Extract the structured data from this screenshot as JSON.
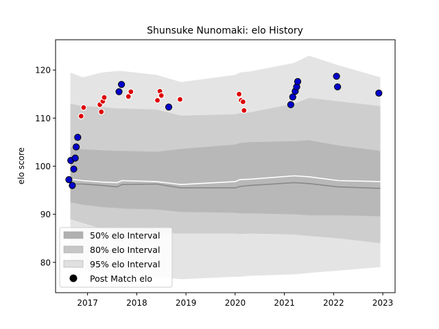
{
  "chart_data": {
    "type": "line",
    "title": "Shunsuke Nunomaki: elo History",
    "xlabel": "",
    "ylabel": "elo score",
    "xlim": [
      2016.35,
      2023.25
    ],
    "ylim": [
      73.7,
      126.3
    ],
    "x_ticks": [
      2017,
      2018,
      2019,
      2020,
      2021,
      2022,
      2023
    ],
    "y_ticks": [
      80,
      90,
      100,
      110,
      120
    ],
    "grid": false,
    "legend_position": "lower-left",
    "colors": {
      "band95": "#e4e4e4",
      "band80": "#cecece",
      "band50": "#b8b8b8",
      "mean_line": "#ffffff",
      "median_line": "#888888",
      "point_win": "#0000cc",
      "point_loss": "#dd0000",
      "point_edge_win": "#000000",
      "point_edge_loss": "#ffffff"
    },
    "bands": {
      "x": [
        2016.65,
        2016.9,
        2017.3,
        2017.6,
        2017.7,
        2018.4,
        2018.9,
        2020.0,
        2020.1,
        2020.3,
        2021.2,
        2021.5,
        2022.1,
        2022.95
      ],
      "p95_low": [
        79,
        78.5,
        77.5,
        77.0,
        76.8,
        77.0,
        76.5,
        77.0,
        77.0,
        77.2,
        77.5,
        77.8,
        78.3,
        79.0
      ],
      "p95_high": [
        119.5,
        118.5,
        119.5,
        119.8,
        119.8,
        119.0,
        117.5,
        119.0,
        119.5,
        119.7,
        121.5,
        123.0,
        121.0,
        118.5
      ],
      "p80_low": [
        89,
        88.2,
        87.0,
        86.6,
        86.5,
        86.2,
        86.0,
        86.0,
        85.9,
        86.0,
        85.8,
        85.5,
        85.0,
        84.0
      ],
      "p80_high": [
        113,
        112.5,
        112.3,
        112.0,
        112.0,
        111.8,
        110.5,
        110.8,
        111.0,
        111.2,
        113.0,
        114.2,
        113.5,
        112.5
      ],
      "p50_low": [
        92.5,
        92.0,
        91.5,
        91.3,
        91.2,
        91.0,
        90.5,
        90.3,
        90.2,
        90.2,
        90.0,
        89.8,
        89.8,
        89.6
      ],
      "p50_high": [
        104.0,
        103.5,
        103.3,
        103.2,
        103.2,
        103.0,
        103.6,
        104.5,
        104.8,
        105.0,
        105.2,
        105.4,
        104.3,
        103.2
      ],
      "mean": [
        97.3,
        97.0,
        96.7,
        96.6,
        97.0,
        96.8,
        96.2,
        96.8,
        97.2,
        97.3,
        98.0,
        97.8,
        97.0,
        96.8
      ],
      "median": [
        96.3,
        96.3,
        96.0,
        95.7,
        96.2,
        96.3,
        95.5,
        95.5,
        95.8,
        96.0,
        96.6,
        96.4,
        95.7,
        95.4
      ]
    },
    "series": [
      {
        "name": "Post Match elo",
        "points": [
          {
            "x": 2016.62,
            "y": 97.2,
            "result": "win"
          },
          {
            "x": 2016.66,
            "y": 101.2,
            "result": "win"
          },
          {
            "x": 2016.69,
            "y": 96.0,
            "result": "win"
          },
          {
            "x": 2016.72,
            "y": 99.4,
            "result": "win"
          },
          {
            "x": 2016.75,
            "y": 101.7,
            "result": "win"
          },
          {
            "x": 2016.77,
            "y": 104.0,
            "result": "win"
          },
          {
            "x": 2016.8,
            "y": 106.0,
            "result": "win"
          },
          {
            "x": 2016.87,
            "y": 110.4,
            "result": "loss"
          },
          {
            "x": 2016.92,
            "y": 112.2,
            "result": "loss"
          },
          {
            "x": 2017.25,
            "y": 112.8,
            "result": "loss"
          },
          {
            "x": 2017.28,
            "y": 111.3,
            "result": "loss"
          },
          {
            "x": 2017.31,
            "y": 113.5,
            "result": "loss"
          },
          {
            "x": 2017.34,
            "y": 114.3,
            "result": "loss"
          },
          {
            "x": 2017.64,
            "y": 115.5,
            "result": "win"
          },
          {
            "x": 2017.69,
            "y": 117.0,
            "result": "win"
          },
          {
            "x": 2017.83,
            "y": 114.5,
            "result": "loss"
          },
          {
            "x": 2017.88,
            "y": 115.5,
            "result": "loss"
          },
          {
            "x": 2018.42,
            "y": 113.7,
            "result": "loss"
          },
          {
            "x": 2018.47,
            "y": 115.6,
            "result": "loss"
          },
          {
            "x": 2018.5,
            "y": 114.7,
            "result": "loss"
          },
          {
            "x": 2018.65,
            "y": 112.3,
            "result": "win"
          },
          {
            "x": 2018.88,
            "y": 113.9,
            "result": "loss"
          },
          {
            "x": 2020.08,
            "y": 115.0,
            "result": "loss"
          },
          {
            "x": 2020.12,
            "y": 113.7,
            "result": "loss"
          },
          {
            "x": 2020.16,
            "y": 113.4,
            "result": "loss"
          },
          {
            "x": 2020.18,
            "y": 111.6,
            "result": "loss"
          },
          {
            "x": 2021.13,
            "y": 112.8,
            "result": "win"
          },
          {
            "x": 2021.17,
            "y": 114.4,
            "result": "win"
          },
          {
            "x": 2021.22,
            "y": 115.6,
            "result": "win"
          },
          {
            "x": 2021.25,
            "y": 116.5,
            "result": "win"
          },
          {
            "x": 2021.27,
            "y": 117.6,
            "result": "win"
          },
          {
            "x": 2022.06,
            "y": 118.7,
            "result": "win"
          },
          {
            "x": 2022.08,
            "y": 116.5,
            "result": "win"
          },
          {
            "x": 2022.92,
            "y": 115.2,
            "result": "win"
          }
        ]
      }
    ],
    "legend": [
      {
        "label": "50% elo Interval",
        "swatch": "band50"
      },
      {
        "label": "80% elo Interval",
        "swatch": "band80"
      },
      {
        "label": "95% elo Interval",
        "swatch": "band95"
      },
      {
        "label": "Post Match elo",
        "swatch": "dot"
      }
    ]
  }
}
